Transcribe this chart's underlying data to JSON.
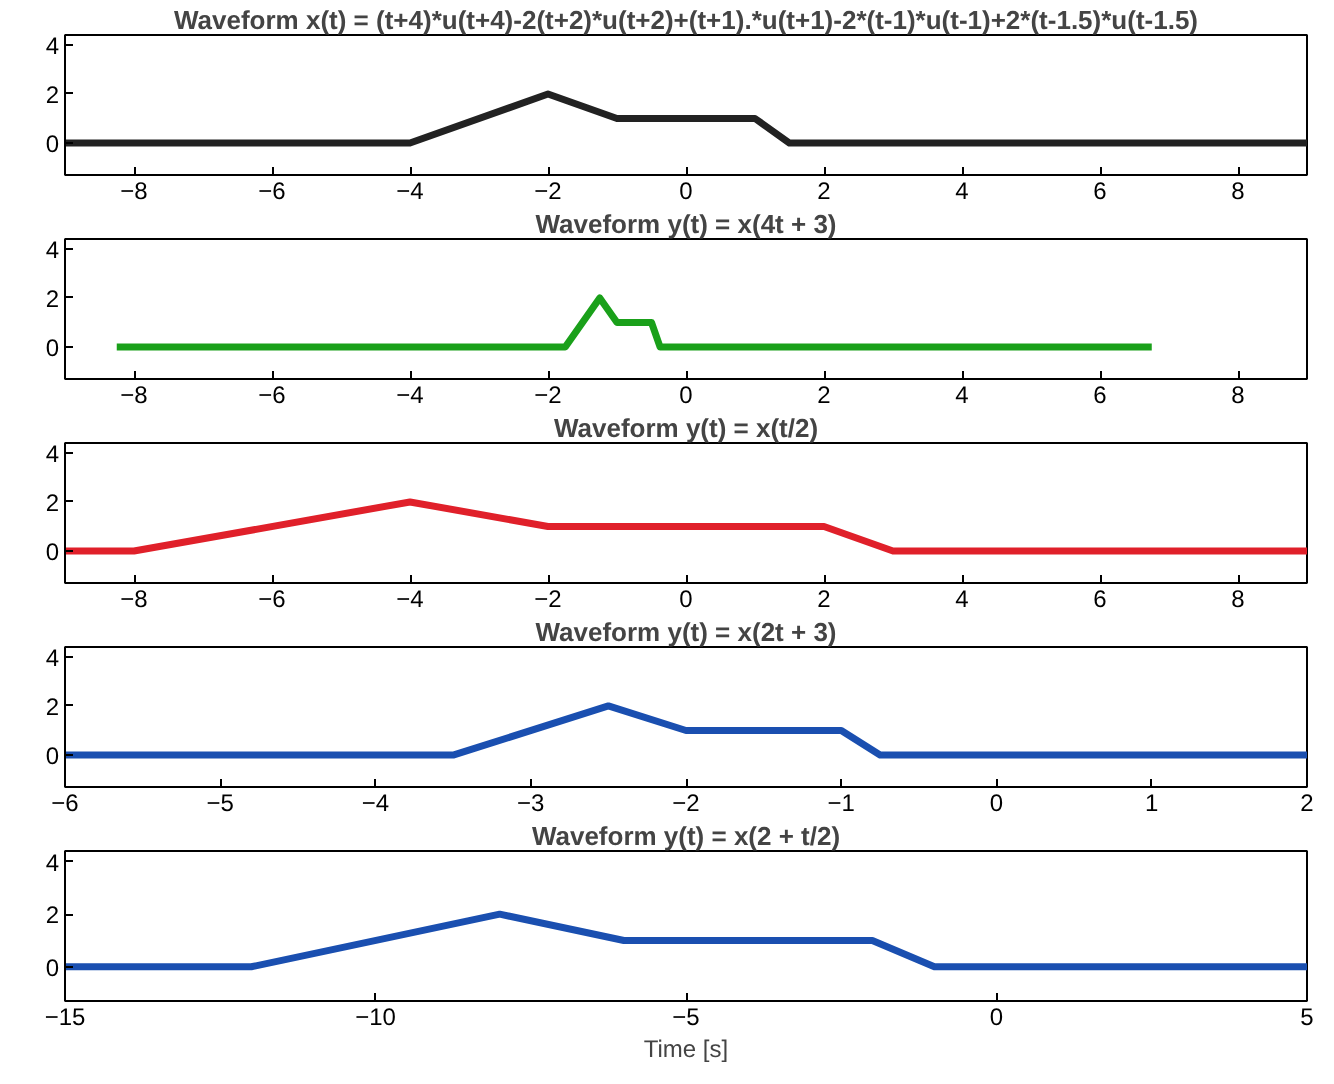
{
  "chart_data": [
    {
      "type": "line",
      "title": "Waveform x(t) = (t+4)*u(t+4)-2(t+2)*u(t+2)+(t+1).*u(t+1)-2*(t-1)*u(t-1)+2*(t-1.5)*u(t-1.5)",
      "x": [
        -9,
        -4,
        -2,
        -1,
        1,
        1.5,
        9
      ],
      "series": [
        {
          "color": "#222222",
          "values": [
            0,
            0,
            2,
            1,
            1,
            0,
            0
          ]
        }
      ],
      "xlim": [
        -9,
        9
      ],
      "xticks": [
        -8,
        -6,
        -4,
        -2,
        0,
        2,
        4,
        6,
        8
      ],
      "ylim": [
        -1.3,
        4.4
      ],
      "yticks": [
        0,
        2,
        4
      ],
      "grid": false
    },
    {
      "type": "line",
      "title": "Waveform y(t) = x(4t + 3)",
      "x": [
        -8.25,
        -1.75,
        -1.25,
        -1,
        -0.5,
        -0.375,
        6.75
      ],
      "series": [
        {
          "color": "#1aa01a",
          "values": [
            0,
            0,
            2,
            1,
            1,
            0,
            0
          ]
        }
      ],
      "xlim": [
        -9,
        9
      ],
      "xticks": [
        -8,
        -6,
        -4,
        -2,
        0,
        2,
        4,
        6,
        8
      ],
      "ylim": [
        -1.3,
        4.4
      ],
      "yticks": [
        0,
        2,
        4
      ],
      "grid": false
    },
    {
      "type": "line",
      "title": "Waveform y(t) = x(t/2)",
      "x": [
        -9,
        -8,
        -4,
        -2,
        2,
        3,
        9
      ],
      "series": [
        {
          "color": "#e0202a",
          "values": [
            0,
            0,
            2,
            1,
            1,
            0,
            0
          ]
        }
      ],
      "xlim": [
        -9,
        9
      ],
      "xticks": [
        -8,
        -6,
        -4,
        -2,
        0,
        2,
        4,
        6,
        8
      ],
      "ylim": [
        -1.3,
        4.4
      ],
      "yticks": [
        0,
        2,
        4
      ],
      "grid": false
    },
    {
      "type": "line",
      "title": "Waveform y(t) = x(2t + 3)",
      "x": [
        -6,
        -3.5,
        -2.5,
        -2,
        -1,
        -0.75,
        2
      ],
      "series": [
        {
          "color": "#1a4fb0",
          "values": [
            0,
            0,
            2,
            1,
            1,
            0,
            0
          ]
        }
      ],
      "xlim": [
        -6,
        2
      ],
      "xticks": [
        -6,
        -5,
        -4,
        -3,
        -2,
        -1,
        0,
        1,
        2
      ],
      "ylim": [
        -1.3,
        4.4
      ],
      "yticks": [
        0,
        2,
        4
      ],
      "grid": false
    },
    {
      "type": "line",
      "title": "Waveform y(t) = x(2 + t/2)",
      "xlabel": "Time [s]",
      "x": [
        -15,
        -12,
        -8,
        -6,
        -2,
        -1,
        5
      ],
      "series": [
        {
          "color": "#1a4fb0",
          "values": [
            0,
            0,
            2,
            1,
            1,
            0,
            0
          ]
        }
      ],
      "xlim": [
        -15,
        5
      ],
      "xticks": [
        -15,
        -10,
        -5,
        0,
        5
      ],
      "ylim": [
        -1.3,
        4.4
      ],
      "yticks": [
        0,
        2,
        4
      ],
      "grid": false
    }
  ]
}
